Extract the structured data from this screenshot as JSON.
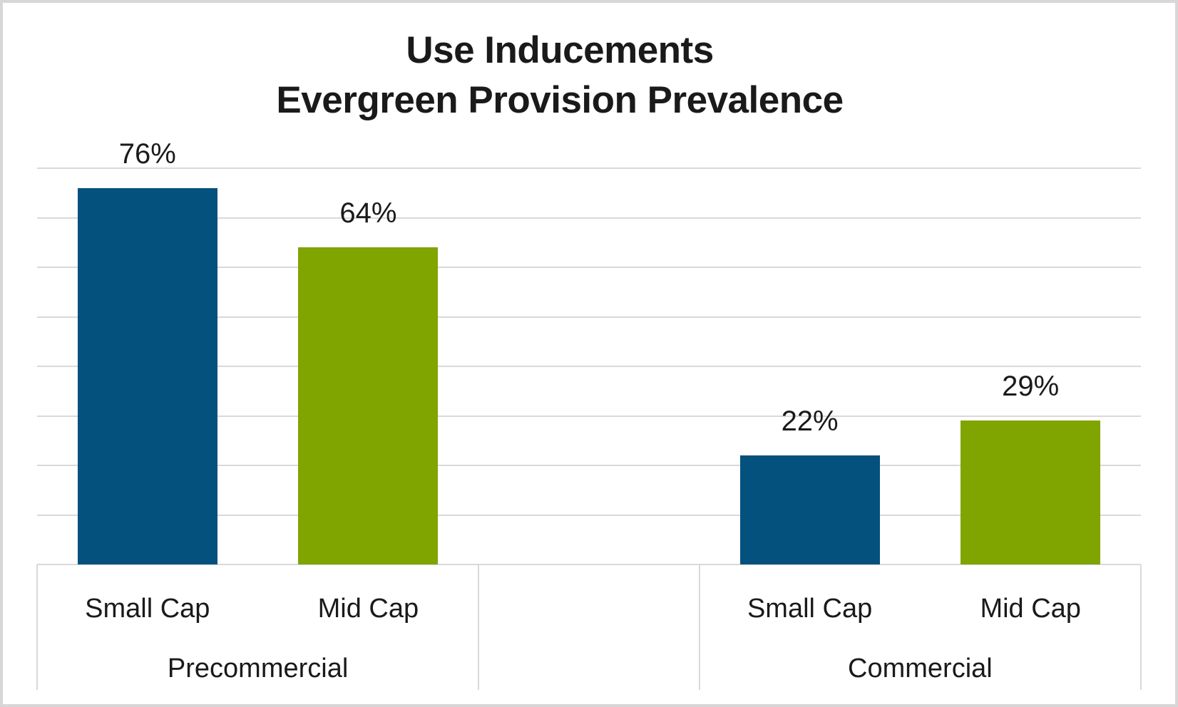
{
  "page": {
    "background": "#ffffff",
    "border_color": "#d8d6d6"
  },
  "chart_data": {
    "type": "bar",
    "title_lines": [
      "Use Inducements",
      "Evergreen Provision Prevalence"
    ],
    "ylabel": "",
    "xlabel": "",
    "ylim": [
      0,
      80
    ],
    "gridline_step": 10,
    "grid": true,
    "legend": false,
    "y_axis_tick_labels_visible": false,
    "gridline_color": "#d9d9d9",
    "text_color": "#1a1a1a",
    "series": [
      {
        "name": "Small Cap",
        "color": "#05517e"
      },
      {
        "name": "Mid Cap",
        "color": "#80a400"
      }
    ],
    "groups": [
      {
        "label": "Precommercial",
        "slots": 2,
        "bars": [
          {
            "category": "Small Cap",
            "value": 76,
            "label": "76%",
            "color": "#05517e"
          },
          {
            "category": "Mid Cap",
            "value": 64,
            "label": "64%",
            "color": "#80a400"
          }
        ]
      },
      {
        "label": "",
        "slots": 1,
        "bars": []
      },
      {
        "label": "Commercial",
        "slots": 2,
        "bars": [
          {
            "category": "Small Cap",
            "value": 22,
            "label": "22%",
            "color": "#05517e"
          },
          {
            "category": "Mid Cap",
            "value": 29,
            "label": "29%",
            "color": "#80a400"
          }
        ]
      }
    ]
  }
}
